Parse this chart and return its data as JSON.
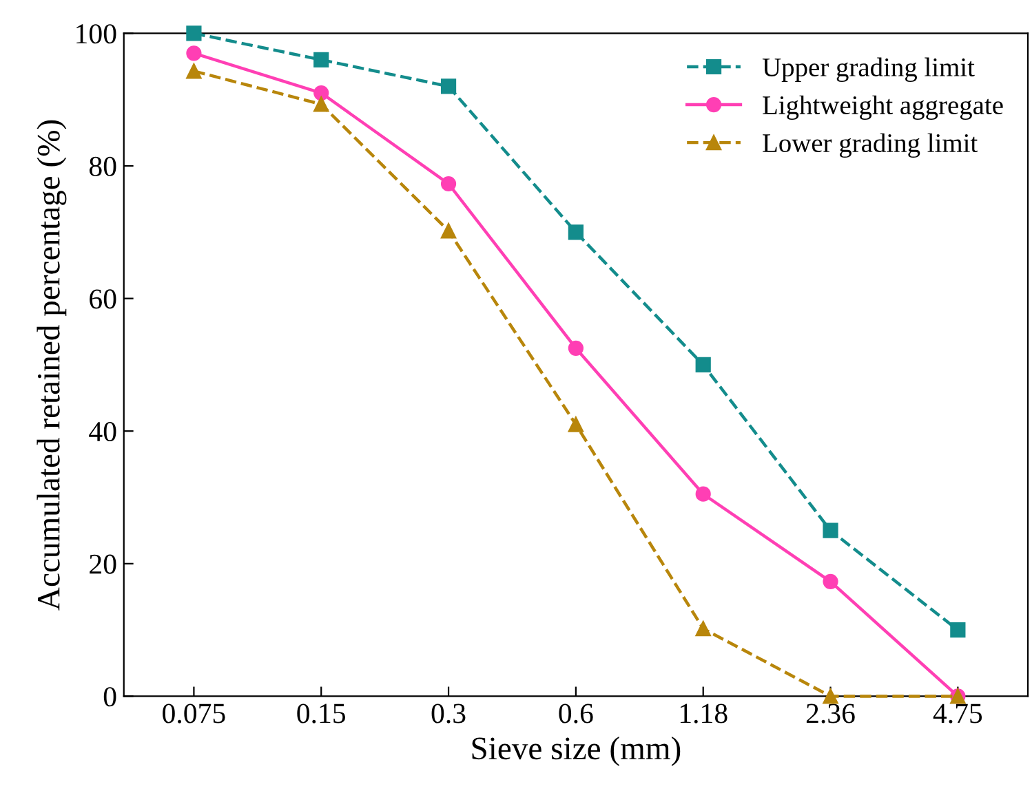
{
  "chart_data": {
    "type": "line",
    "xlabel": "Sieve size (mm)",
    "ylabel": "Accumulated retained percentage (%)",
    "categories": [
      "0.075",
      "0.15",
      "0.3",
      "0.6",
      "1.18",
      "2.36",
      "4.75"
    ],
    "series": [
      {
        "name": "Upper grading limit",
        "color": "#138c8c",
        "values": [
          100,
          96,
          92,
          70,
          50,
          25,
          10
        ],
        "marker": "square",
        "line_style": "dashed"
      },
      {
        "name": "Lightweight aggregate",
        "color": "#ff3fb4",
        "values": [
          97,
          91,
          77.3,
          52.5,
          30.5,
          17.3,
          0
        ],
        "marker": "circle",
        "line_style": "solid"
      },
      {
        "name": "Lower grading limit",
        "color": "#b8860b",
        "values": [
          94.3,
          89.3,
          70.2,
          41,
          10.2,
          0,
          0
        ],
        "marker": "triangle",
        "line_style": "dashed"
      }
    ],
    "ylim": [
      0,
      100
    ],
    "yticks": [
      0,
      20,
      40,
      60,
      80,
      100
    ],
    "grid": false,
    "legend": "top right"
  }
}
